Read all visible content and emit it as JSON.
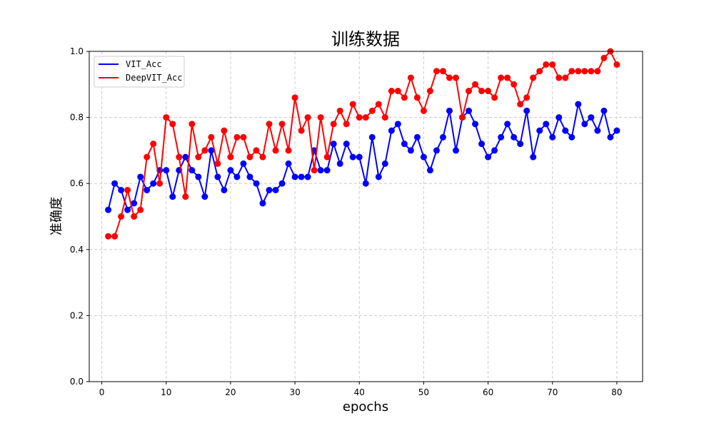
{
  "chart_data": {
    "type": "line",
    "title": "训练数据",
    "xlabel": "epochs",
    "ylabel": "准确度",
    "xlim": [
      -1.95,
      84.0
    ],
    "ylim": [
      0.0,
      1.0
    ],
    "xticks": [
      0,
      10,
      20,
      30,
      40,
      50,
      60,
      70,
      80
    ],
    "yticks": [
      0.0,
      0.2,
      0.4,
      0.6,
      0.8,
      1.0
    ],
    "xtick_labels": [
      "0",
      "10",
      "20",
      "30",
      "40",
      "50",
      "60",
      "70",
      "80"
    ],
    "ytick_labels": [
      "0.0",
      "0.2",
      "0.4",
      "0.6",
      "0.8",
      "1.0"
    ],
    "grid": true,
    "legend_position": "top-left",
    "x": [
      1,
      2,
      3,
      4,
      5,
      6,
      7,
      8,
      9,
      10,
      11,
      12,
      13,
      14,
      15,
      16,
      17,
      18,
      19,
      20,
      21,
      22,
      23,
      24,
      25,
      26,
      27,
      28,
      29,
      30,
      31,
      32,
      33,
      34,
      35,
      36,
      37,
      38,
      39,
      40,
      41,
      42,
      43,
      44,
      45,
      46,
      47,
      48,
      49,
      50,
      51,
      52,
      53,
      54,
      55,
      56,
      57,
      58,
      59,
      60,
      61,
      62,
      63,
      64,
      65,
      66,
      67,
      68,
      69,
      70,
      71,
      72,
      73,
      74,
      75,
      76,
      77,
      78,
      79,
      80
    ],
    "series": [
      {
        "name": "VIT_Acc",
        "color": "#0000ff",
        "values": [
          0.52,
          0.6,
          0.58,
          0.52,
          0.54,
          0.62,
          0.58,
          0.6,
          0.64,
          0.64,
          0.56,
          0.64,
          0.68,
          0.64,
          0.62,
          0.56,
          0.7,
          0.62,
          0.58,
          0.64,
          0.62,
          0.66,
          0.62,
          0.6,
          0.54,
          0.58,
          0.58,
          0.6,
          0.66,
          0.62,
          0.62,
          0.62,
          0.7,
          0.64,
          0.64,
          0.72,
          0.66,
          0.72,
          0.68,
          0.68,
          0.6,
          0.74,
          0.62,
          0.66,
          0.76,
          0.78,
          0.72,
          0.7,
          0.74,
          0.68,
          0.64,
          0.7,
          0.74,
          0.82,
          0.7,
          0.8,
          0.82,
          0.78,
          0.72,
          0.68,
          0.7,
          0.74,
          0.78,
          0.74,
          0.72,
          0.82,
          0.68,
          0.76,
          0.78,
          0.74,
          0.8,
          0.76,
          0.74,
          0.84,
          0.78,
          0.8,
          0.76,
          0.82,
          0.74,
          0.76
        ]
      },
      {
        "name": "DeepVIT_Acc",
        "color": "#ff0000",
        "values": [
          0.44,
          0.44,
          0.5,
          0.58,
          0.5,
          0.52,
          0.68,
          0.72,
          0.6,
          0.8,
          0.78,
          0.68,
          0.56,
          0.78,
          0.68,
          0.7,
          0.74,
          0.66,
          0.76,
          0.68,
          0.74,
          0.74,
          0.68,
          0.7,
          0.68,
          0.78,
          0.7,
          0.78,
          0.7,
          0.86,
          0.76,
          0.8,
          0.64,
          0.8,
          0.68,
          0.78,
          0.82,
          0.78,
          0.84,
          0.8,
          0.8,
          0.82,
          0.84,
          0.8,
          0.88,
          0.88,
          0.86,
          0.92,
          0.86,
          0.82,
          0.88,
          0.94,
          0.94,
          0.92,
          0.92,
          0.8,
          0.88,
          0.9,
          0.88,
          0.88,
          0.86,
          0.92,
          0.92,
          0.9,
          0.84,
          0.86,
          0.92,
          0.94,
          0.96,
          0.96,
          0.92,
          0.92,
          0.94,
          0.94,
          0.94,
          0.94,
          0.94,
          0.98,
          1.0,
          0.96
        ]
      }
    ]
  }
}
